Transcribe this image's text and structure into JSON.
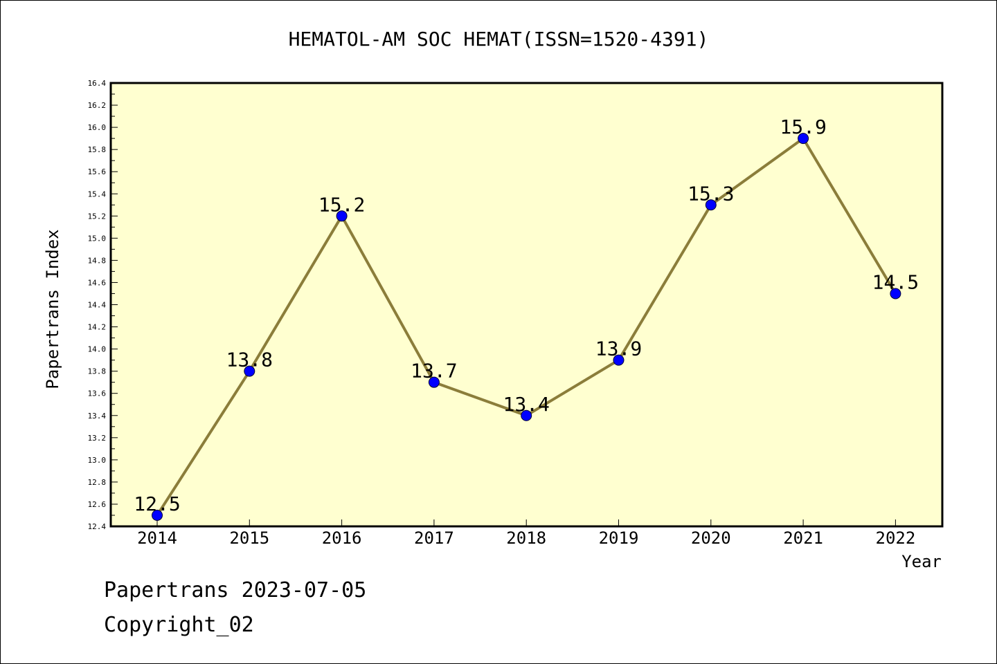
{
  "chart_data": {
    "type": "line",
    "title": "HEMATOL-AM SOC HEMAT(ISSN=1520-4391)",
    "xlabel": "Year",
    "ylabel": "Papertrans Index",
    "categories": [
      "2014",
      "2015",
      "2016",
      "2017",
      "2018",
      "2019",
      "2020",
      "2021",
      "2022"
    ],
    "values": [
      12.5,
      13.8,
      15.2,
      13.7,
      13.4,
      13.9,
      15.3,
      15.9,
      14.5
    ],
    "data_labels": [
      "12.5",
      "13.8",
      "15.2",
      "13.7",
      "13.4",
      "13.9",
      "15.3",
      "15.9",
      "14.5"
    ],
    "ylim": [
      12.4,
      16.4
    ],
    "yticks": [
      "12.4",
      "12.6",
      "12.8",
      "13.0",
      "13.2",
      "13.4",
      "13.6",
      "13.8",
      "14.0",
      "14.2",
      "14.4",
      "14.6",
      "14.8",
      "15.0",
      "15.2",
      "15.4",
      "15.6",
      "15.8",
      "16.0",
      "16.2",
      "16.4"
    ],
    "grid": false,
    "colors": {
      "plot_background": "#ffffd0",
      "line": "#8b7d3a",
      "marker": "#0000ff"
    }
  },
  "footer": {
    "line1": "Papertrans 2023-07-05",
    "line2": "Copyright_02"
  }
}
